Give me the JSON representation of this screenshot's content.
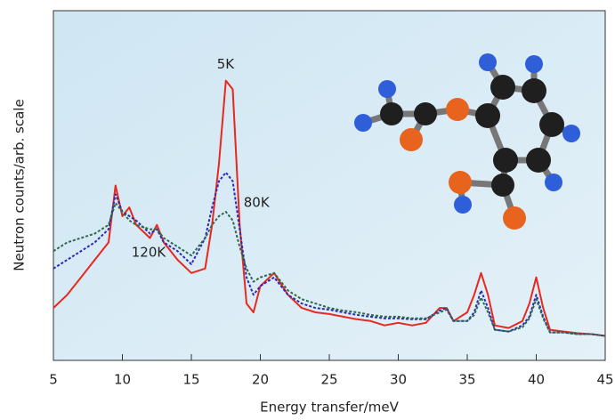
{
  "chart_data": {
    "type": "line",
    "x_label": "Energy transfer/meV",
    "y_label": "Neutron counts/arb. scale",
    "x": [
      5,
      6,
      7,
      8,
      9,
      9.5,
      10,
      10.5,
      11,
      12,
      12.5,
      13,
      14,
      15,
      16,
      16.5,
      17,
      17.5,
      18,
      18.5,
      19,
      19.5,
      20,
      21,
      22,
      23,
      24,
      25,
      26,
      27,
      28,
      29,
      30,
      31,
      32,
      33,
      33.5,
      34,
      35,
      35.5,
      36,
      36.5,
      37,
      38,
      39,
      39.5,
      40,
      40.5,
      41,
      42,
      43,
      44,
      45
    ],
    "series": [
      {
        "name": "5K",
        "color": "#e8281e",
        "dash": false,
        "values": [
          60,
          75,
          95,
          115,
          135,
          200,
          165,
          175,
          155,
          140,
          155,
          135,
          115,
          100,
          105,
          155,
          225,
          320,
          310,
          155,
          65,
          55,
          85,
          100,
          75,
          60,
          55,
          53,
          50,
          47,
          45,
          40,
          43,
          40,
          43,
          60,
          60,
          45,
          55,
          75,
          100,
          75,
          40,
          37,
          45,
          65,
          95,
          60,
          35,
          33,
          31,
          30,
          28
        ]
      },
      {
        "name": "80K",
        "color": "#2a2ab8",
        "dash": true,
        "values": [
          105,
          115,
          125,
          135,
          150,
          190,
          170,
          165,
          160,
          145,
          150,
          135,
          125,
          110,
          140,
          175,
          205,
          215,
          205,
          150,
          95,
          75,
          85,
          95,
          75,
          65,
          60,
          58,
          55,
          52,
          50,
          48,
          48,
          47,
          47,
          57,
          60,
          45,
          45,
          55,
          80,
          60,
          35,
          33,
          40,
          50,
          75,
          50,
          32,
          32,
          30,
          30,
          28
        ]
      },
      {
        "name": "120K",
        "color": "#2e6b4a",
        "dash": true,
        "values": [
          125,
          135,
          140,
          145,
          155,
          180,
          170,
          160,
          155,
          150,
          150,
          140,
          130,
          120,
          140,
          155,
          165,
          170,
          160,
          130,
          105,
          90,
          95,
          100,
          80,
          70,
          65,
          60,
          57,
          55,
          52,
          50,
          50,
          48,
          48,
          55,
          58,
          45,
          45,
          52,
          72,
          55,
          35,
          33,
          38,
          48,
          70,
          48,
          32,
          32,
          30,
          30,
          28
        ]
      }
    ],
    "xlim": [
      5,
      45
    ],
    "xticks": [
      5,
      10,
      15,
      20,
      25,
      30,
      35,
      40,
      45
    ],
    "ylim": [
      0,
      400
    ]
  }
}
